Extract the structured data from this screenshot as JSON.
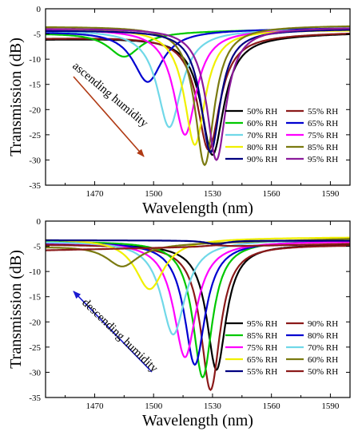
{
  "chart_data": [
    {
      "type": "line",
      "title": "",
      "xlabel": "Wavelength (nm)",
      "ylabel": "Transmission (dB)",
      "xlim": [
        1445,
        1600
      ],
      "ylim": [
        -35,
        0
      ],
      "xticks": [
        1470,
        1500,
        1530,
        1560,
        1590
      ],
      "yticks": [
        0,
        -5,
        -10,
        -15,
        -20,
        -25,
        -30,
        -35
      ],
      "grid": false,
      "legend_position": "bottom-right",
      "annotation": {
        "text": "ascending humidity",
        "arrow_color": "#b03a14"
      },
      "series": [
        {
          "name": "50% RH",
          "color": "#000000",
          "dip_x": 1530,
          "dip_y": -29,
          "width": 7.0,
          "left_y": -6.0,
          "right_y": -4.8
        },
        {
          "name": "55% RH",
          "color": "#8b1a1a",
          "dip_x": 1528,
          "dip_y": -28,
          "width": 7.0,
          "left_y": -5.8,
          "right_y": -4.7
        },
        {
          "name": "60% RH",
          "color": "#00c800",
          "dip_x": 1485,
          "dip_y": -9.5,
          "width": 10.0,
          "left_y": -4.8,
          "right_y": -3.9
        },
        {
          "name": "65% RH",
          "color": "#0000d0",
          "dip_x": 1497,
          "dip_y": -14.5,
          "width": 9.0,
          "left_y": -4.5,
          "right_y": -3.8
        },
        {
          "name": "70% RH",
          "color": "#70d8e8",
          "dip_x": 1508,
          "dip_y": -23.5,
          "width": 7.5,
          "left_y": -4.2,
          "right_y": -4.0
        },
        {
          "name": "75% RH",
          "color": "#ff00ff",
          "dip_x": 1516,
          "dip_y": -25,
          "width": 7.0,
          "left_y": -4.0,
          "right_y": -4.1
        },
        {
          "name": "80% RH",
          "color": "#f0f000",
          "dip_x": 1521,
          "dip_y": -27,
          "width": 6.5,
          "left_y": -3.8,
          "right_y": -4.2
        },
        {
          "name": "85% RH",
          "color": "#7a7a10",
          "dip_x": 1526,
          "dip_y": -31,
          "width": 6.0,
          "left_y": -3.5,
          "right_y": -3.3
        },
        {
          "name": "90% RH",
          "color": "#000080",
          "dip_x": 1529,
          "dip_y": -28.5,
          "width": 6.0,
          "left_y": -4.3,
          "right_y": -4.0
        },
        {
          "name": "95% RH",
          "color": "#8b1a9b",
          "dip_x": 1532,
          "dip_y": -30,
          "width": 6.0,
          "left_y": -3.9,
          "right_y": -3.7
        }
      ]
    },
    {
      "type": "line",
      "title": "",
      "xlabel": "Wavelength (nm)",
      "ylabel": "Transmission (dB)",
      "xlim": [
        1445,
        1600
      ],
      "ylim": [
        -35,
        0
      ],
      "xticks": [
        1470,
        1500,
        1530,
        1560,
        1590
      ],
      "yticks": [
        0,
        -5,
        -10,
        -15,
        -20,
        -25,
        -30,
        -35
      ],
      "grid": false,
      "legend_position": "bottom-right",
      "annotation": {
        "text": "descending humidity",
        "arrow_color": "#1a1ad0"
      },
      "series": [
        {
          "name": "95% RH",
          "color": "#000000",
          "dip_x": 1532,
          "dip_y": -29.5,
          "width": 6.0,
          "left_y": -4.5,
          "right_y": -4.6
        },
        {
          "name": "90% RH",
          "color": "#8b1a1a",
          "dip_x": 1529,
          "dip_y": -33.5,
          "width": 6.0,
          "left_y": -4.6,
          "right_y": -4.7
        },
        {
          "name": "85% RH",
          "color": "#00c800",
          "dip_x": 1525,
          "dip_y": -31,
          "width": 6.0,
          "left_y": -4.0,
          "right_y": -3.8
        },
        {
          "name": "80% RH",
          "color": "#0000d0",
          "dip_x": 1521,
          "dip_y": -28.5,
          "width": 6.5,
          "left_y": -4.2,
          "right_y": -3.9
        },
        {
          "name": "75% RH",
          "color": "#ff00ff",
          "dip_x": 1516,
          "dip_y": -27,
          "width": 7.0,
          "left_y": -4.1,
          "right_y": -4.0
        },
        {
          "name": "70% RH",
          "color": "#70d8e8",
          "dip_x": 1510,
          "dip_y": -22.5,
          "width": 7.5,
          "left_y": -4.0,
          "right_y": -3.6
        },
        {
          "name": "65% RH",
          "color": "#f0f000",
          "dip_x": 1498,
          "dip_y": -13.5,
          "width": 9.0,
          "left_y": -3.5,
          "right_y": -3.2
        },
        {
          "name": "60% RH",
          "color": "#7a7a10",
          "dip_x": 1484,
          "dip_y": -9,
          "width": 10.0,
          "left_y": -5.0,
          "right_y": -3.5
        },
        {
          "name": "55% RH",
          "color": "#000080",
          "dip_x": 1532,
          "dip_y": -4.6,
          "width": 6.0,
          "left_y": -3.8,
          "right_y": -3.9
        },
        {
          "name": "50% RH",
          "color": "#8b1a1a",
          "dip_x": 1532,
          "dip_y": -4.8,
          "width": 6.0,
          "left_y": -5.8,
          "right_y": -4.5
        }
      ]
    }
  ]
}
